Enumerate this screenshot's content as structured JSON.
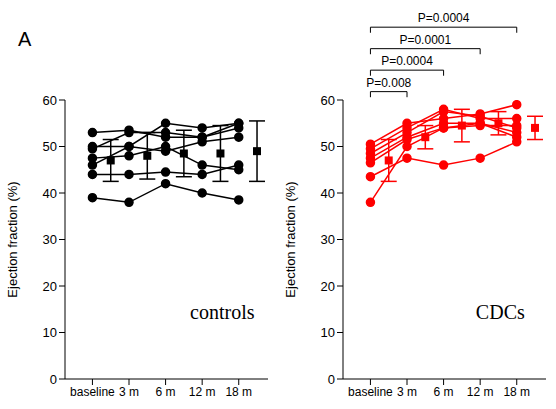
{
  "panel_label": "A",
  "chart_data": [
    {
      "type": "line",
      "label": "controls",
      "color": "#000000",
      "marker": "circle",
      "y_label": "Ejection fraction (%)",
      "xlim": [
        -0.75,
        4.8
      ],
      "xticks": [
        {
          "value": 0,
          "label": "baseline"
        },
        {
          "value": 1,
          "label": "3 m"
        },
        {
          "value": 2,
          "label": "6 m"
        },
        {
          "value": 3,
          "label": "12 m"
        },
        {
          "value": 4,
          "label": "18 m"
        }
      ],
      "ylim": [
        0,
        60
      ],
      "yticks": [
        0,
        10,
        20,
        30,
        40,
        50,
        60
      ],
      "x": [
        0,
        1,
        2,
        3,
        4
      ],
      "subjects": [
        [
          53,
          53.5,
          52,
          52,
          55
        ],
        [
          50,
          50,
          55,
          54,
          55
        ],
        [
          49.5,
          53,
          53,
          52,
          54
        ],
        [
          46,
          50,
          49,
          51,
          52
        ],
        [
          44,
          44,
          44.5,
          44,
          46
        ],
        [
          47.5,
          48,
          50,
          46,
          45
        ],
        [
          39,
          38,
          42,
          40,
          38.5
        ]
      ],
      "mean": {
        "marker": "square",
        "x": [
          0.5,
          1.5,
          2.5,
          3.5,
          4.5
        ],
        "values": [
          47,
          48,
          48.5,
          48.5,
          49
        ],
        "sd": [
          4.5,
          5,
          5,
          6,
          6.5
        ]
      }
    },
    {
      "type": "line",
      "label": "CDCs",
      "color": "#ff0000",
      "marker": "circle",
      "y_label": "Ejection fraction (%)",
      "xlim": [
        -0.75,
        4.8
      ],
      "xticks": [
        {
          "value": 0,
          "label": "baseline"
        },
        {
          "value": 1,
          "label": "3 m"
        },
        {
          "value": 2,
          "label": "6 m"
        },
        {
          "value": 3,
          "label": "12 m"
        },
        {
          "value": 4,
          "label": "18 m"
        }
      ],
      "ylim": [
        0,
        60
      ],
      "yticks": [
        0,
        10,
        20,
        30,
        40,
        50,
        60
      ],
      "x": [
        0,
        1,
        2,
        3,
        4
      ],
      "subjects": [
        [
          50.5,
          55,
          56,
          57,
          59
        ],
        [
          49.5,
          54,
          58,
          56,
          56
        ],
        [
          48.5,
          53,
          57.5,
          56.5,
          54
        ],
        [
          47.5,
          52,
          55,
          55,
          53
        ],
        [
          46.5,
          51.5,
          54,
          55,
          52
        ],
        [
          43.5,
          47.5,
          46,
          47.5,
          51
        ],
        [
          38,
          50,
          54,
          54.5,
          54.5
        ]
      ],
      "mean": {
        "marker": "square",
        "x": [
          0.5,
          1.5,
          2.5,
          3.5,
          4.5
        ],
        "values": [
          47,
          52,
          54.5,
          55,
          54
        ],
        "sd": [
          4.5,
          2.5,
          3.5,
          2.5,
          2.5
        ]
      },
      "annotations": [
        {
          "text": "P=0.008",
          "from": 0,
          "to": 1
        },
        {
          "text": "P=0.0004",
          "from": 0,
          "to": 2
        },
        {
          "text": "P=0.0001",
          "from": 0,
          "to": 3
        },
        {
          "text": "P=0.0004",
          "from": 0,
          "to": 4
        }
      ]
    }
  ]
}
